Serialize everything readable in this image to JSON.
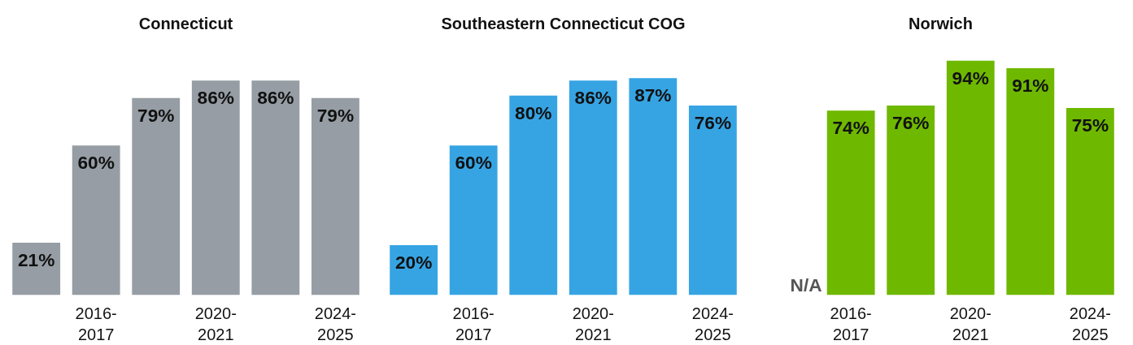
{
  "chart_data": [
    {
      "type": "bar",
      "title": "Connecticut",
      "categories": [
        null,
        "2016-\n2017",
        null,
        "2020-\n2021",
        null,
        "2024-\n2025"
      ],
      "values": [
        21,
        60,
        79,
        86,
        86,
        79
      ],
      "value_labels": [
        "21%",
        "60%",
        "79%",
        "86%",
        "86%",
        "79%"
      ],
      "color": "#969da4",
      "tick_labels": "x",
      "grid": false,
      "legend": false
    },
    {
      "type": "bar",
      "title": "Southeastern Connecticut COG",
      "categories": [
        null,
        "2016-\n2017",
        null,
        "2020-\n2021",
        null,
        "2024-\n2025"
      ],
      "values": [
        20,
        60,
        80,
        86,
        87,
        76
      ],
      "value_labels": [
        "20%",
        "60%",
        "80%",
        "86%",
        "87%",
        "76%"
      ],
      "color": "#36a4e3",
      "tick_labels": "x",
      "grid": false,
      "legend": false
    },
    {
      "type": "bar",
      "title": "Norwich",
      "categories": [
        null,
        "2016-\n2017",
        null,
        "2020-\n2021",
        null,
        "2024-\n2025"
      ],
      "values": [
        null,
        74,
        76,
        94,
        91,
        75
      ],
      "value_labels": [
        "N/A",
        "74%",
        "76%",
        "94%",
        "91%",
        "75%"
      ],
      "color": "#6fb800",
      "tick_labels": "x",
      "grid": false,
      "legend": false
    }
  ]
}
